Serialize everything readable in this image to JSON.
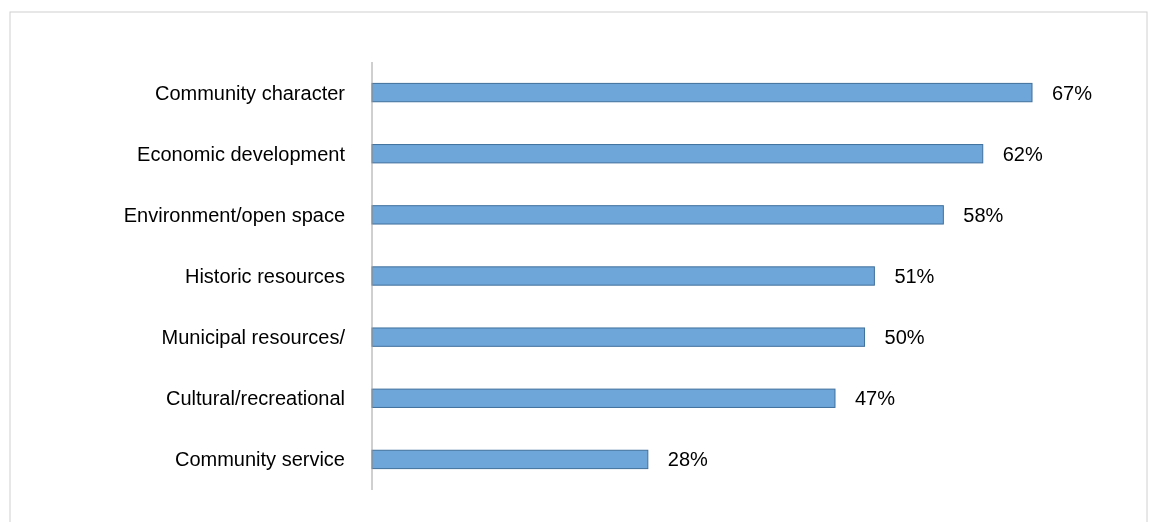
{
  "chart_data": {
    "type": "bar",
    "orientation": "horizontal",
    "categories": [
      "Community character",
      "Economic development",
      "Environment/open space",
      "Historic resources",
      "Municipal resources/",
      "Cultural/recreational",
      "Community service"
    ],
    "values": [
      67,
      62,
      58,
      51,
      50,
      47,
      28
    ],
    "value_labels": [
      "67%",
      "62%",
      "58%",
      "51%",
      "50%",
      "47%",
      "28%"
    ],
    "color": "#6fa6d9"
  }
}
